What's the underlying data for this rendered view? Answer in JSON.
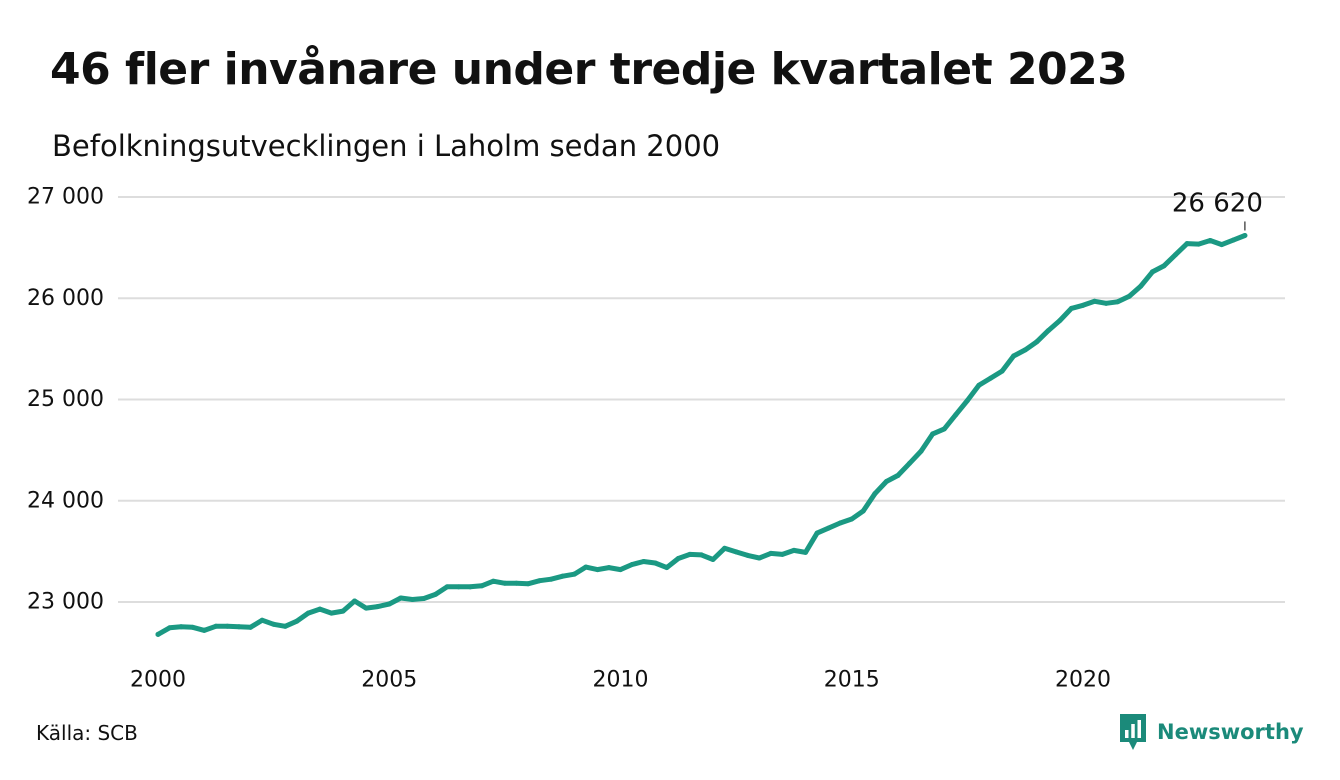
{
  "title": "46 fler invånare under tredje kvartalet 2023",
  "subtitle": "Befolkningsutvecklingen i Laholm sedan 2000",
  "source": "Källa: SCB",
  "brand": {
    "name": "Newsworthy",
    "icon": "newsworthy-logo-icon"
  },
  "colors": {
    "line": "#1b9983",
    "grid": "#dddddd",
    "brand": "#1b8a7a",
    "text": "#111111"
  },
  "chart_data": {
    "type": "line",
    "title": "46 fler invånare under tredje kvartalet 2023",
    "subtitle": "Befolkningsutvecklingen i Laholm sedan 2000",
    "xlabel": "",
    "ylabel": "",
    "grid": true,
    "legend": "none",
    "xlim": [
      2000,
      2024.6
    ],
    "ylim": [
      22650,
      27000
    ],
    "x_ticks": [
      2000,
      2005,
      2010,
      2015,
      2020
    ],
    "x_tick_labels": [
      "2000",
      "2005",
      "2010",
      "2015",
      "2020"
    ],
    "y_ticks": [
      23000,
      24000,
      25000,
      26000,
      27000
    ],
    "y_tick_labels": [
      "23 000",
      "24 000",
      "25 000",
      "26 000",
      "27 000"
    ],
    "annotations": [
      {
        "x": 2023.5,
        "y": 26620,
        "text": "26 620"
      }
    ],
    "series": [
      {
        "x": [
          2000,
          2000.25,
          2000.5,
          2000.75,
          2001,
          2001.25,
          2001.5,
          2001.75,
          2002,
          2002.25,
          2002.5,
          2002.75,
          2003,
          2003.25,
          2003.5,
          2003.75,
          2004,
          2004.25,
          2004.5,
          2004.75,
          2005,
          2005.25,
          2005.5,
          2005.75,
          2006,
          2006.25,
          2006.5,
          2006.75,
          2007,
          2007.25,
          2007.5,
          2007.75,
          2008,
          2008.25,
          2008.5,
          2008.75,
          2009,
          2009.25,
          2009.5,
          2009.75,
          2010,
          2010.25,
          2010.5,
          2010.75,
          2011,
          2011.25,
          2011.5,
          2011.75,
          2012,
          2012.25,
          2012.5,
          2012.75,
          2013,
          2013.25,
          2013.5,
          2013.75,
          2014,
          2014.25,
          2014.5,
          2014.75,
          2015,
          2015.25,
          2015.5,
          2015.75,
          2016,
          2016.25,
          2016.5,
          2016.75,
          2017,
          2017.25,
          2017.5,
          2017.75,
          2018,
          2018.25,
          2018.5,
          2018.75,
          2019,
          2019.25,
          2019.5,
          2019.75,
          2020,
          2020.25,
          2020.5,
          2020.75,
          2021,
          2021.25,
          2021.5,
          2021.75,
          2022,
          2022.25,
          2022.5,
          2022.75,
          2023,
          2023.25,
          2023.5
        ],
        "y": [
          22680,
          22745,
          22755,
          22750,
          22720,
          22760,
          22760,
          22755,
          22750,
          22820,
          22780,
          22760,
          22810,
          22890,
          22930,
          22890,
          22910,
          23010,
          22940,
          22955,
          22980,
          23040,
          23025,
          23035,
          23075,
          23150,
          23150,
          23150,
          23160,
          23205,
          23185,
          23185,
          23180,
          23210,
          23225,
          23255,
          23275,
          23345,
          23320,
          23340,
          23320,
          23370,
          23400,
          23385,
          23340,
          23430,
          23470,
          23465,
          23420,
          23530,
          23495,
          23460,
          23435,
          23480,
          23470,
          23510,
          23490,
          23680,
          23730,
          23780,
          23820,
          23900,
          24070,
          24190,
          24250,
          24370,
          24490,
          24660,
          24710,
          24850,
          24990,
          25140,
          25210,
          25280,
          25430,
          25490,
          25570,
          25680,
          25780,
          25900,
          25930,
          25970,
          25950,
          25965,
          26020,
          26120,
          26260,
          26320,
          26430,
          26540,
          26535,
          26570,
          26530,
          26574,
          26620
        ]
      }
    ]
  }
}
